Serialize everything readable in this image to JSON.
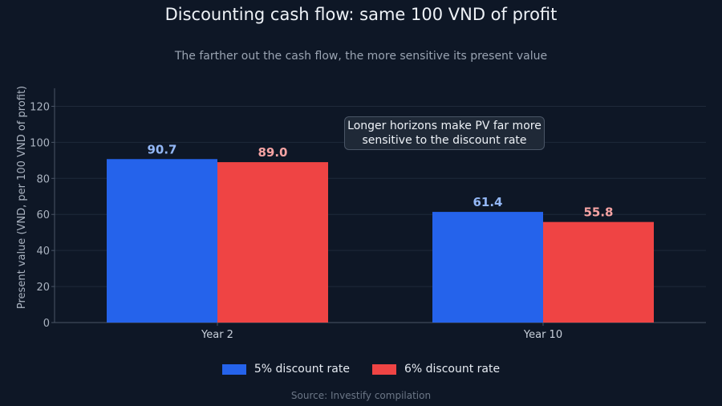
{
  "chart_data": {
    "type": "bar",
    "title": "Discounting cash flow: same 100 VND of profit",
    "subtitle": "The farther out the cash flow, the more sensitive its present value",
    "xlabel": "",
    "ylabel": "Present value (VND, per 100 VND of profit)",
    "categories": [
      "Year 2",
      "Year 10"
    ],
    "series": [
      {
        "name": "5% discount rate",
        "values": [
          90.7,
          61.4
        ],
        "color": "#2563eb",
        "label_color": "#93b7f5"
      },
      {
        "name": "6% discount rate",
        "values": [
          89.0,
          55.8
        ],
        "color": "#ef4444",
        "label_color": "#f5a3a3"
      }
    ],
    "data_labels": [
      [
        "90.7",
        "61.4"
      ],
      [
        "89.0",
        "55.8"
      ]
    ],
    "ylim": [
      0,
      130
    ],
    "yticks": [
      0,
      20,
      40,
      60,
      80,
      100,
      120
    ],
    "grid": true,
    "legend_position": "bottom-center",
    "annotation": "Longer horizons make PV far more sensitive to the discount rate",
    "source": "Source: Investify compilation"
  }
}
